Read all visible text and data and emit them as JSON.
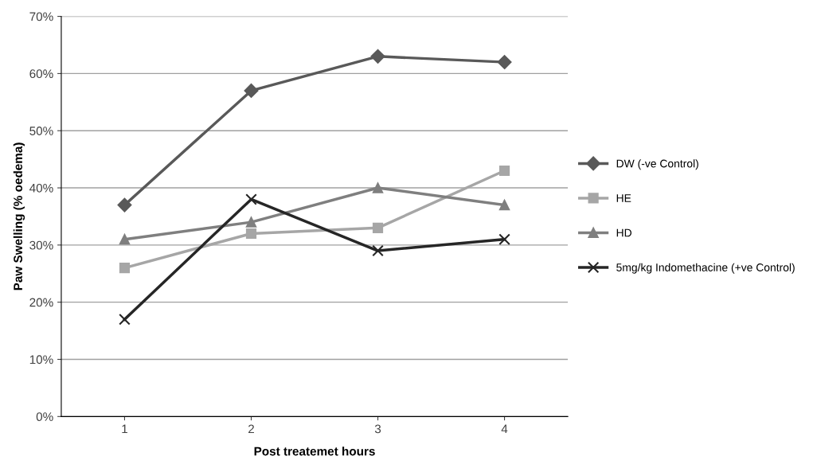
{
  "chart_data": {
    "type": "line",
    "xlabel": "Post treatemet hours",
    "ylabel": "Paw Swelling (% oedema)",
    "categories": [
      "1",
      "2",
      "3",
      "4"
    ],
    "series": [
      {
        "name": "DW (-ve Control)",
        "color": "#595959",
        "marker": "diamond",
        "values": [
          37,
          57,
          63,
          62
        ]
      },
      {
        "name": "HE",
        "color": "#a6a6a6",
        "marker": "square",
        "values": [
          26,
          32,
          33,
          43
        ]
      },
      {
        "name": "HD",
        "color": "#7f7f7f",
        "marker": "triangle",
        "values": [
          31,
          34,
          40,
          37
        ]
      },
      {
        "name": "5mg/kg Indomethacine (+ve Control)",
        "color": "#262626",
        "marker": "cross",
        "values": [
          17,
          38,
          29,
          31
        ]
      }
    ],
    "ylim": [
      0,
      70
    ],
    "yticks": [
      {
        "value": 0,
        "label": "0%"
      },
      {
        "value": 10,
        "label": "10%"
      },
      {
        "value": 20,
        "label": "20%"
      },
      {
        "value": 30,
        "label": "30%"
      },
      {
        "value": 40,
        "label": "40%"
      },
      {
        "value": 50,
        "label": "50%"
      },
      {
        "value": 60,
        "label": "60%"
      },
      {
        "value": 70,
        "label": "70%"
      }
    ],
    "grid": "y",
    "legend": "right",
    "line_style": "solid"
  }
}
